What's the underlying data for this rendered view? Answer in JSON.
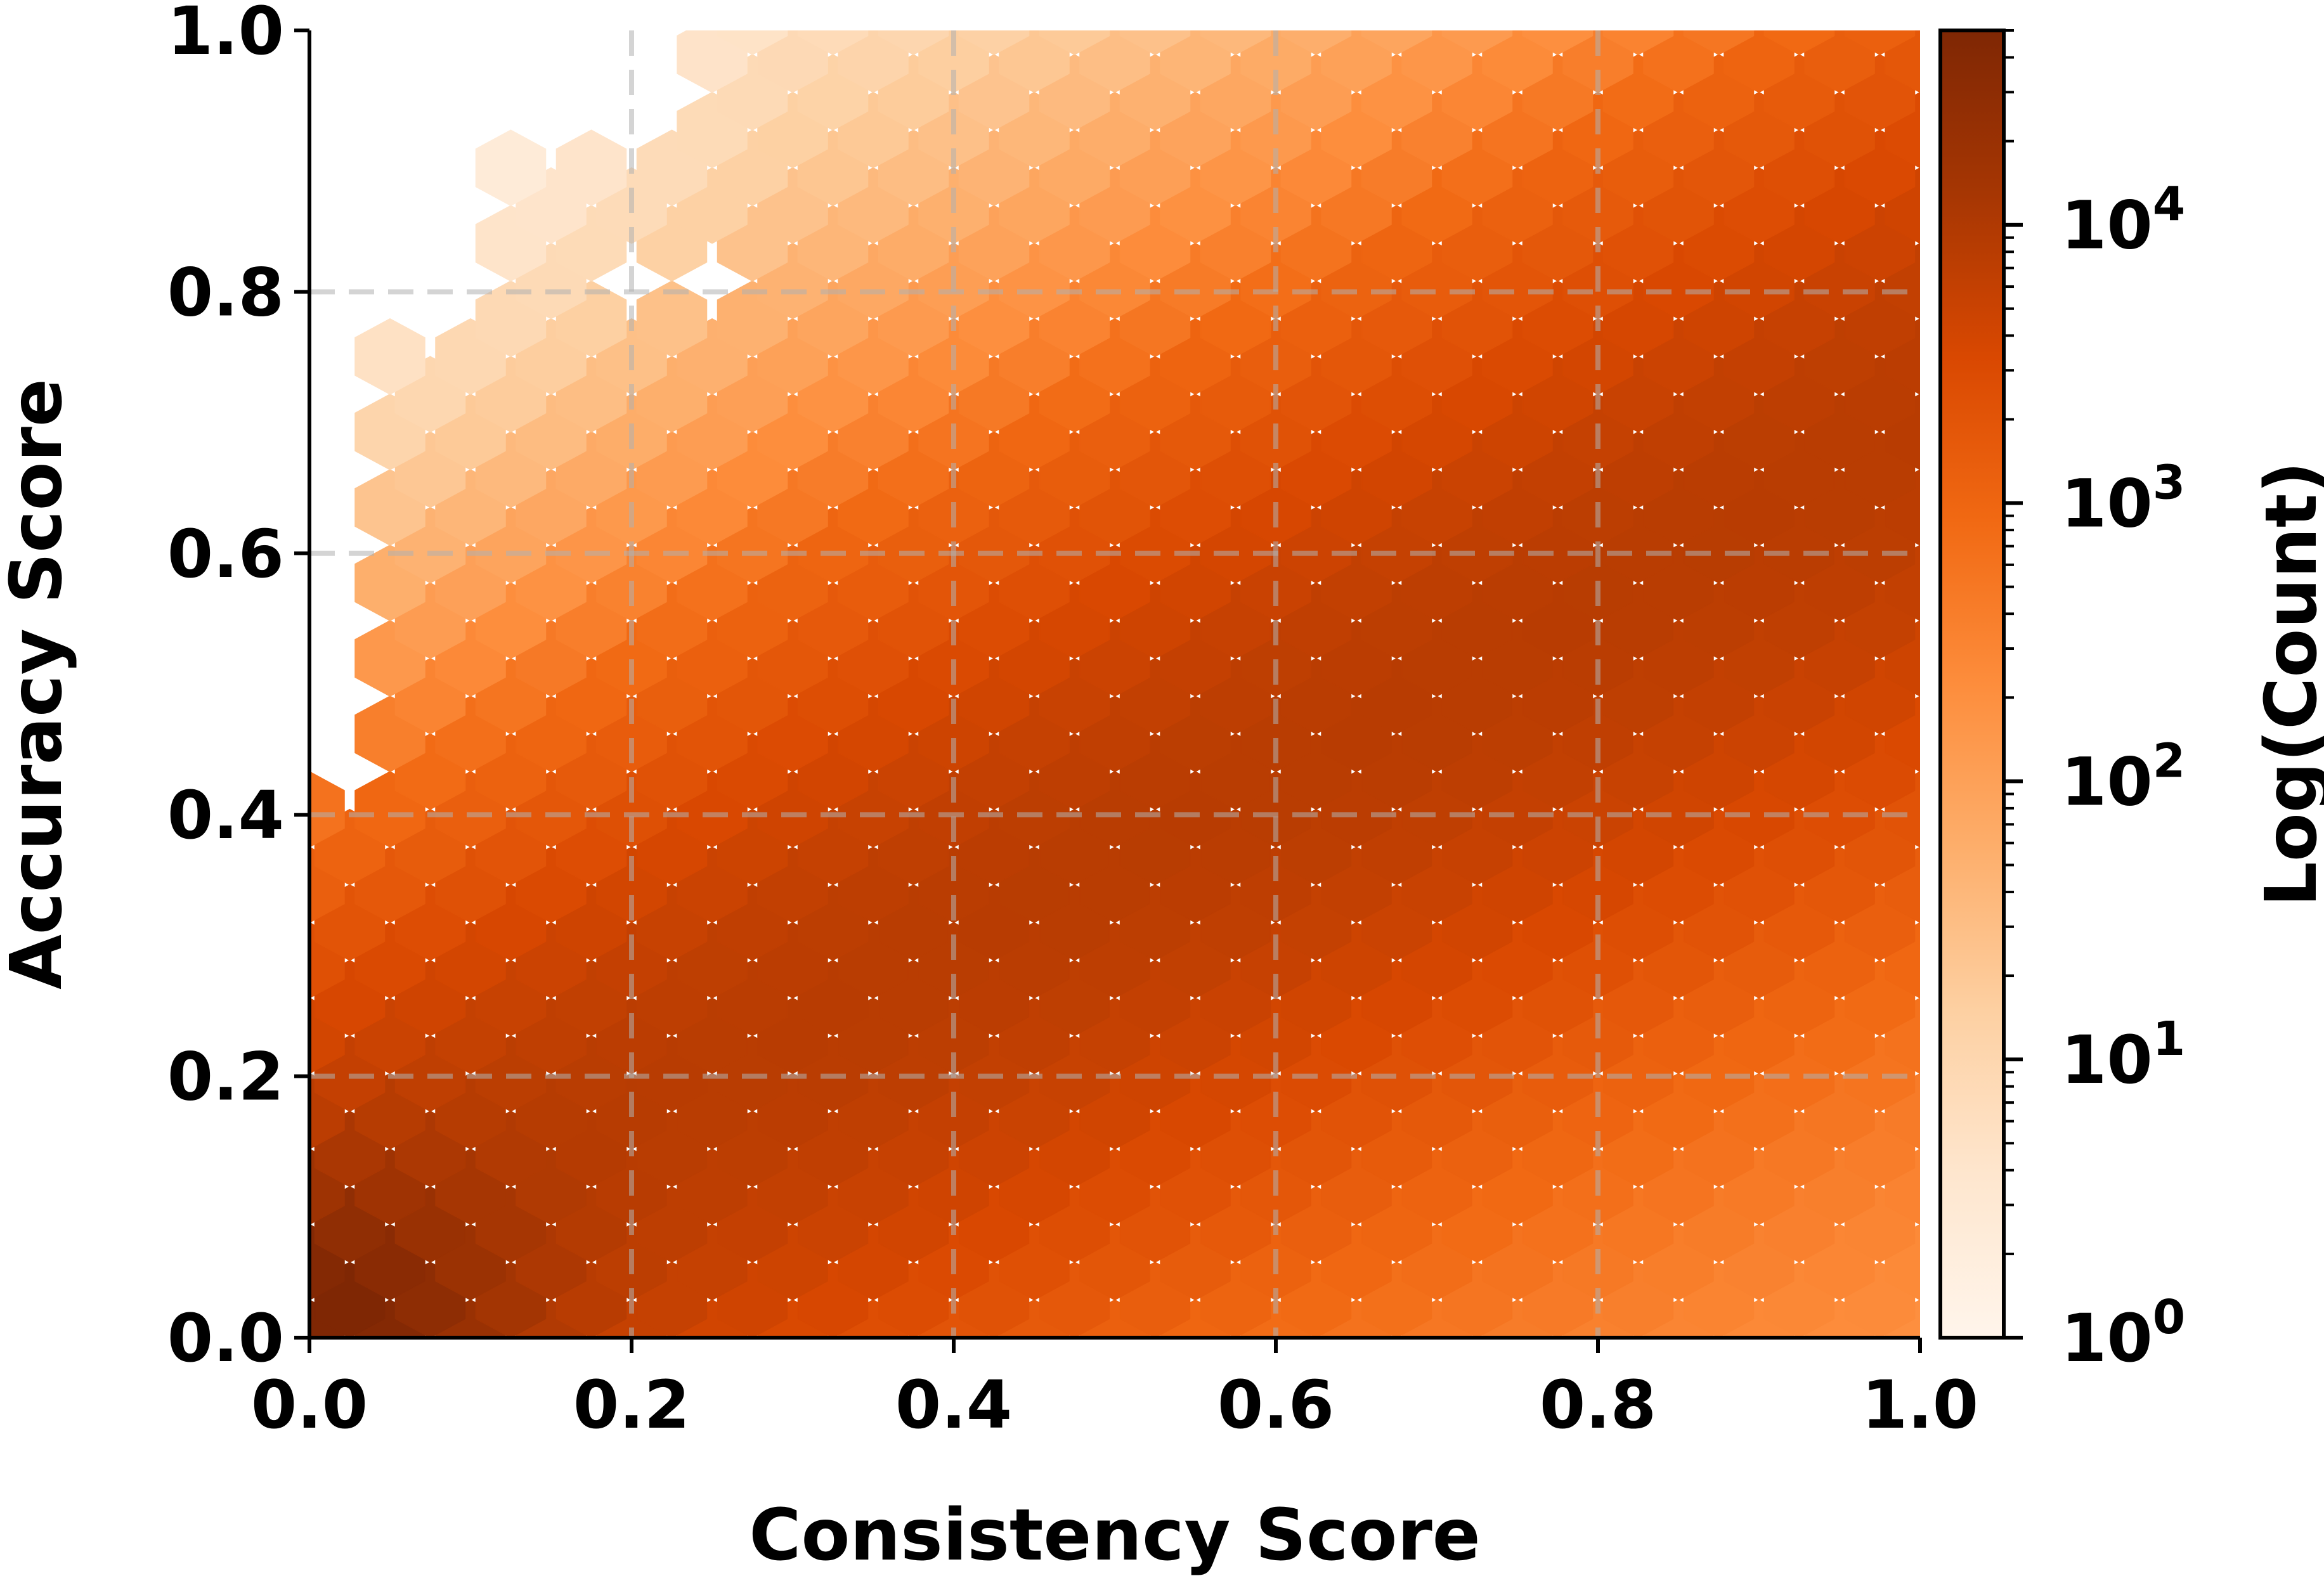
{
  "chart_data": {
    "type": "hexbin",
    "xlabel": "Consistency Score",
    "ylabel": "Accuracy Score",
    "xlim": [
      0.0,
      1.0
    ],
    "ylim": [
      0.0,
      1.0
    ],
    "xticks": [
      "0.0",
      "0.2",
      "0.4",
      "0.6",
      "0.8",
      "1.0"
    ],
    "yticks": [
      "0.0",
      "0.2",
      "0.4",
      "0.6",
      "0.8",
      "1.0"
    ],
    "grid": true,
    "colorbar": {
      "label": "Log(Count)",
      "scale": "log",
      "range": [
        1,
        50000
      ],
      "ticks": [
        {
          "value": 1,
          "base": "10",
          "exp": "0"
        },
        {
          "value": 10,
          "base": "10",
          "exp": "1"
        },
        {
          "value": 100,
          "base": "10",
          "exp": "2"
        },
        {
          "value": 1000,
          "base": "10",
          "exp": "3"
        },
        {
          "value": 10000,
          "base": "10",
          "exp": "4"
        }
      ]
    },
    "colormap": [
      "#fff5eb",
      "#fee6ce",
      "#fdd0a2",
      "#fdae6b",
      "#fd8d3c",
      "#f16913",
      "#d94801",
      "#a63603",
      "#7f2704"
    ],
    "gridsize": 20,
    "density_model": "approximate counts: ridge along accuracy ~ 0.66*consistency + 0.04 with a dense corner near (0,0); empty cells in the upper-left region"
  }
}
